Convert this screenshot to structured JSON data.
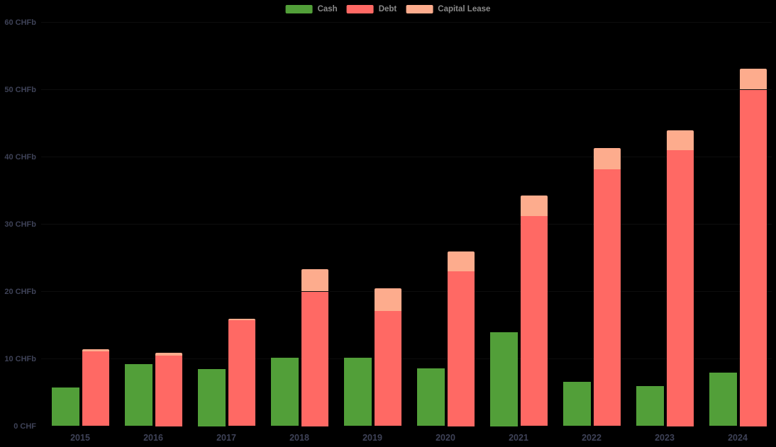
{
  "chart_data": {
    "type": "bar",
    "mode": "grouped-cash-vs-stacked-debt",
    "title": "",
    "xlabel": "",
    "ylabel": "",
    "unit": "CHFb",
    "categories": [
      "2015",
      "2016",
      "2017",
      "2018",
      "2019",
      "2020",
      "2021",
      "2022",
      "2023",
      "2024"
    ],
    "series": [
      {
        "name": "Cash",
        "color": "#529f39",
        "stack": "cash",
        "values": [
          5.7,
          9.2,
          8.5,
          10.2,
          10.2,
          8.6,
          14.0,
          6.6,
          5.9,
          7.9
        ]
      },
      {
        "name": "Debt",
        "color": "#ff6964",
        "stack": "debtlease",
        "values": [
          11.1,
          10.5,
          15.7,
          20.0,
          17.1,
          23.0,
          31.2,
          38.2,
          41.0,
          50.0
        ]
      },
      {
        "name": "Capital Lease",
        "color": "#fdac8d",
        "stack": "debtlease",
        "values": [
          0.3,
          0.4,
          0.3,
          3.3,
          3.4,
          2.9,
          3.1,
          3.1,
          3.0,
          3.1
        ]
      }
    ],
    "y_ticks": [
      {
        "value": 0,
        "label": "0 CHF"
      },
      {
        "value": 10,
        "label": "10 CHFb"
      },
      {
        "value": 20,
        "label": "20 CHFb"
      },
      {
        "value": 30,
        "label": "30 CHFb"
      },
      {
        "value": 40,
        "label": "40 CHFb"
      },
      {
        "value": 50,
        "label": "50 CHFb"
      },
      {
        "value": 60,
        "label": "60 CHFb"
      }
    ],
    "ylim": [
      0,
      63
    ],
    "grid": "on-but-near-invisible",
    "legend_position": "top-center",
    "colors": {
      "background": "#000000",
      "axis_label": "#3e4257",
      "legend_text": "#8a8a8a",
      "cash": "#529f39",
      "debt": "#ff6964",
      "capital_lease": "#fdac8d"
    }
  }
}
